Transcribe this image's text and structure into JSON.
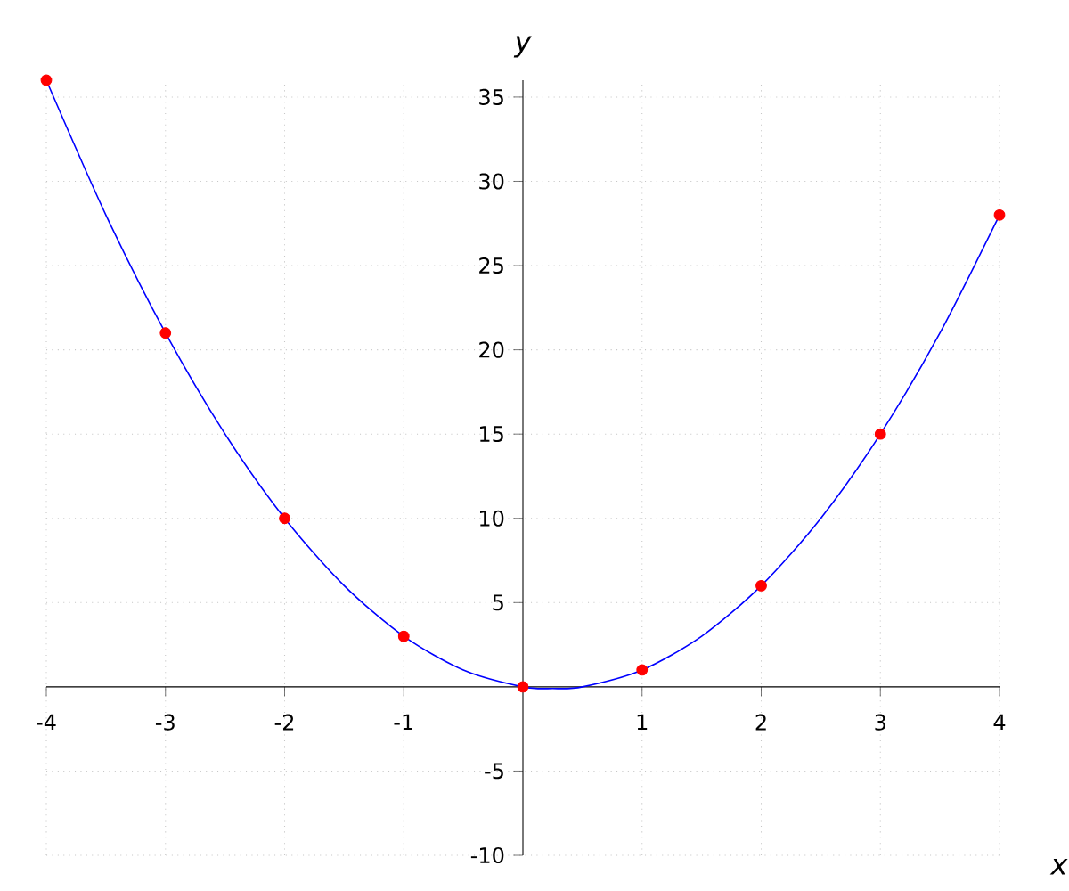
{
  "chart_data": {
    "type": "line",
    "xlabel": "x",
    "ylabel": "y",
    "xlim": [
      -4,
      4
    ],
    "ylim": [
      -10,
      36
    ],
    "xticks": [
      -4,
      -3,
      -2,
      -1,
      1,
      2,
      3,
      4
    ],
    "yticks": [
      -10,
      -5,
      5,
      10,
      15,
      20,
      25,
      30,
      35
    ],
    "grid": true,
    "series": [
      {
        "color": "#0000ff",
        "x": [
          -4,
          -3.5,
          -3,
          -2.5,
          -2,
          -1.5,
          -1,
          -0.5,
          0,
          0.25,
          0.5,
          1,
          1.5,
          2,
          2.5,
          3,
          3.5,
          4
        ],
        "values": [
          36,
          28,
          21,
          15,
          10,
          6,
          3,
          1,
          0,
          -0.1,
          0,
          1,
          3,
          6,
          10,
          15,
          21,
          28
        ]
      },
      {
        "type": "scatter",
        "color": "#ff0000",
        "x": [
          -4,
          -3,
          -2,
          -1,
          0,
          1,
          2,
          3,
          4
        ],
        "values": [
          36,
          21,
          10,
          3,
          0,
          1,
          6,
          15,
          28
        ]
      }
    ]
  }
}
